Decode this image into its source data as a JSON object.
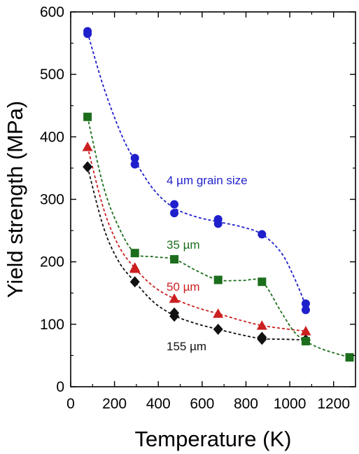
{
  "chart_data": {
    "type": "scatter",
    "xlabel": "Temperature (K)",
    "ylabel": "Yield strength (MPa)",
    "xlim": [
      0,
      1300
    ],
    "ylim": [
      0,
      600
    ],
    "xticks": [
      0,
      200,
      400,
      600,
      800,
      1000,
      1200
    ],
    "yticks": [
      0,
      100,
      200,
      300,
      400,
      500,
      600
    ],
    "grid": false,
    "series": [
      {
        "name": "4 µm grain size",
        "color": "#1f1fcc",
        "marker": "circle",
        "points": [
          [
            77,
            569
          ],
          [
            77,
            565
          ],
          [
            293,
            366
          ],
          [
            293,
            356
          ],
          [
            473,
            292
          ],
          [
            473,
            278
          ],
          [
            673,
            268
          ],
          [
            673,
            261
          ],
          [
            873,
            244
          ],
          [
            1073,
            133
          ],
          [
            1073,
            123
          ]
        ],
        "fit": [
          [
            77,
            567
          ],
          [
            150,
            480
          ],
          [
            230,
            405
          ],
          [
            293,
            362
          ],
          [
            380,
            315
          ],
          [
            473,
            286
          ],
          [
            573,
            272
          ],
          [
            673,
            264
          ],
          [
            780,
            256
          ],
          [
            873,
            244
          ],
          [
            960,
            215
          ],
          [
            1020,
            175
          ],
          [
            1073,
            130
          ]
        ]
      },
      {
        "name": "35 µm",
        "color": "#1c6e1c",
        "marker": "square",
        "points": [
          [
            77,
            432
          ],
          [
            293,
            214
          ],
          [
            473,
            204
          ],
          [
            673,
            171
          ],
          [
            873,
            168
          ],
          [
            1073,
            73
          ],
          [
            1273,
            47
          ]
        ],
        "fit": [
          [
            77,
            432
          ],
          [
            150,
            320
          ],
          [
            220,
            255
          ],
          [
            293,
            214
          ],
          [
            380,
            208
          ],
          [
            473,
            204
          ],
          [
            573,
            186
          ],
          [
            673,
            171
          ],
          [
            780,
            170
          ],
          [
            873,
            168
          ],
          [
            960,
            120
          ],
          [
            1020,
            88
          ],
          [
            1073,
            73
          ],
          [
            1150,
            60
          ],
          [
            1273,
            47
          ]
        ]
      },
      {
        "name": "50 µm",
        "color": "#cc1f1f",
        "marker": "triangle",
        "points": [
          [
            77,
            384
          ],
          [
            293,
            191
          ],
          [
            293,
            189
          ],
          [
            473,
            141
          ],
          [
            673,
            117
          ],
          [
            873,
            98
          ],
          [
            1073,
            89
          ]
        ],
        "fit": [
          [
            77,
            384
          ],
          [
            150,
            285
          ],
          [
            220,
            225
          ],
          [
            293,
            190
          ],
          [
            380,
            160
          ],
          [
            473,
            141
          ],
          [
            573,
            127
          ],
          [
            673,
            117
          ],
          [
            780,
            106
          ],
          [
            873,
            98
          ],
          [
            973,
            93
          ],
          [
            1073,
            89
          ]
        ]
      },
      {
        "name": "155 µm",
        "color": "#111111",
        "marker": "diamond",
        "points": [
          [
            77,
            352
          ],
          [
            293,
            168
          ],
          [
            473,
            118
          ],
          [
            473,
            113
          ],
          [
            673,
            92
          ],
          [
            873,
            79
          ],
          [
            873,
            76
          ],
          [
            1073,
            75
          ]
        ],
        "fit": [
          [
            77,
            352
          ],
          [
            150,
            255
          ],
          [
            220,
            200
          ],
          [
            293,
            168
          ],
          [
            380,
            135
          ],
          [
            473,
            114
          ],
          [
            573,
            101
          ],
          [
            673,
            92
          ],
          [
            780,
            83
          ],
          [
            873,
            77
          ],
          [
            973,
            76
          ],
          [
            1073,
            75
          ]
        ]
      }
    ]
  }
}
